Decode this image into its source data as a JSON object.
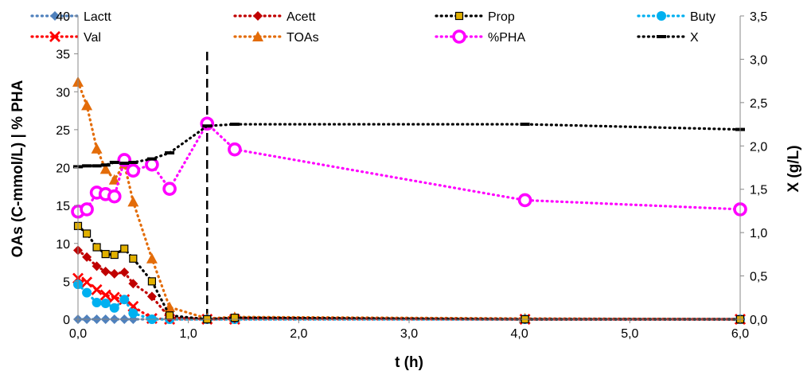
{
  "chart_data": {
    "type": "line",
    "xlabel": "t (h)",
    "ylabel_left": "OAs (C-mmol/L) | % PHA",
    "ylabel_right": "X  (g/L)",
    "xlim": [
      0,
      6
    ],
    "ylim_left": [
      0,
      40
    ],
    "ylim_right": [
      0,
      3.5
    ],
    "grid": false,
    "legend_position": "top",
    "x_ticks": [
      "0,0",
      "1,0",
      "2,0",
      "3,0",
      "4,0",
      "5,0",
      "6,0"
    ],
    "y_left_ticks": [
      "0",
      "5",
      "10",
      "15",
      "20",
      "25",
      "30",
      "35",
      "40"
    ],
    "y_right_ticks": [
      "0,0",
      "0,5",
      "1,0",
      "1,5",
      "2,0",
      "2,5",
      "3,0",
      "3,5"
    ],
    "annotation_vline_x": 1.17,
    "series": [
      {
        "name": "Lactt",
        "axis": "left",
        "color": "#4f81bd",
        "marker": "diamond",
        "x": [
          0,
          0.08,
          0.17,
          0.25,
          0.33,
          0.42,
          0.5,
          0.67,
          0.83,
          1.17,
          1.42,
          4.05,
          6.0
        ],
        "y": [
          0,
          0,
          0,
          0,
          0,
          0,
          0,
          0,
          0,
          0,
          0,
          0,
          0
        ]
      },
      {
        "name": "Acett",
        "axis": "left",
        "color": "#c00000",
        "marker": "diamond",
        "x": [
          0,
          0.08,
          0.17,
          0.25,
          0.33,
          0.42,
          0.5,
          0.67,
          0.83,
          1.17,
          1.42,
          4.05,
          6.0
        ],
        "y": [
          9.1,
          8.2,
          7.0,
          6.3,
          6.0,
          6.2,
          4.7,
          3.0,
          0.2,
          0,
          0.1,
          0,
          0
        ]
      },
      {
        "name": "Prop",
        "axis": "left",
        "color": "#000000",
        "marker": "square",
        "fill": "#e2b100",
        "x": [
          0,
          0.08,
          0.17,
          0.25,
          0.33,
          0.42,
          0.5,
          0.67,
          0.83,
          1.17,
          1.42,
          4.05,
          6.0
        ],
        "y": [
          12.3,
          11.3,
          9.5,
          8.6,
          8.5,
          9.3,
          8.0,
          5.0,
          0.5,
          0,
          0.2,
          0,
          0
        ]
      },
      {
        "name": "Buty",
        "axis": "left",
        "color": "#00b0f0",
        "marker": "circle",
        "x": [
          0,
          0.08,
          0.17,
          0.25,
          0.33,
          0.42,
          0.5,
          0.67,
          0.83,
          1.17,
          1.42,
          4.05,
          6.0
        ],
        "y": [
          4.6,
          3.5,
          2.2,
          2.1,
          1.5,
          2.6,
          0.8,
          0,
          0,
          0,
          0,
          0,
          0
        ]
      },
      {
        "name": "Val",
        "axis": "left",
        "color": "#ff0000",
        "marker": "x",
        "x": [
          0,
          0.08,
          0.17,
          0.25,
          0.33,
          0.42,
          0.5,
          0.67,
          0.83,
          1.17,
          1.42,
          4.05,
          6.0
        ],
        "y": [
          5.4,
          4.9,
          3.9,
          3.2,
          2.9,
          2.6,
          1.7,
          0.1,
          0,
          0,
          0,
          0,
          0
        ]
      },
      {
        "name": "TOAs",
        "axis": "left",
        "color": "#e36c09",
        "marker": "triangle",
        "x": [
          0,
          0.08,
          0.17,
          0.25,
          0.33,
          0.42,
          0.5,
          0.67,
          0.83,
          1.17,
          1.42,
          4.05,
          6.0
        ],
        "y": [
          31.3,
          28.2,
          22.5,
          19.8,
          18.4,
          20.5,
          15.5,
          8.0,
          1.6,
          0.1,
          0.3,
          0.1,
          0
        ]
      },
      {
        "name": "%PHA",
        "axis": "left",
        "color": "#ff00ff",
        "marker": "ring",
        "x": [
          0,
          0.08,
          0.17,
          0.25,
          0.33,
          0.42,
          0.5,
          0.67,
          0.83,
          1.17,
          1.42,
          4.05,
          6.0
        ],
        "y": [
          14.2,
          14.5,
          16.7,
          16.5,
          16.2,
          21.0,
          19.6,
          20.4,
          17.2,
          25.8,
          22.4,
          15.7,
          14.5
        ]
      },
      {
        "name": "X",
        "axis": "right",
        "color": "#000000",
        "marker": "dash",
        "x": [
          0,
          0.08,
          0.17,
          0.25,
          0.33,
          0.42,
          0.5,
          0.67,
          0.83,
          1.17,
          1.42,
          4.05,
          6.0
        ],
        "y": [
          1.76,
          1.77,
          1.77,
          1.78,
          1.81,
          1.8,
          1.81,
          1.85,
          1.92,
          2.23,
          2.25,
          2.25,
          2.19
        ]
      }
    ]
  }
}
